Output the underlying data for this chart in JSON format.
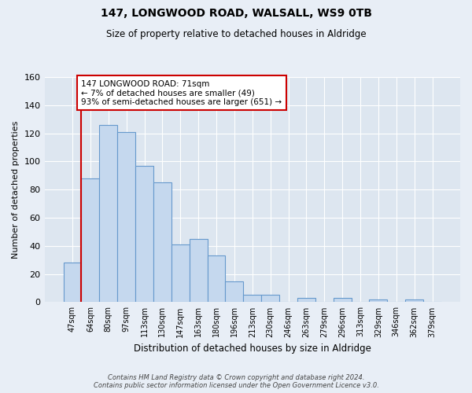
{
  "title": "147, LONGWOOD ROAD, WALSALL, WS9 0TB",
  "subtitle": "Size of property relative to detached houses in Aldridge",
  "xlabel": "Distribution of detached houses by size in Aldridge",
  "ylabel": "Number of detached properties",
  "bar_labels": [
    "47sqm",
    "64sqm",
    "80sqm",
    "97sqm",
    "113sqm",
    "130sqm",
    "147sqm",
    "163sqm",
    "180sqm",
    "196sqm",
    "213sqm",
    "230sqm",
    "246sqm",
    "263sqm",
    "279sqm",
    "296sqm",
    "313sqm",
    "329sqm",
    "346sqm",
    "362sqm",
    "379sqm"
  ],
  "bar_values": [
    28,
    88,
    126,
    121,
    97,
    85,
    41,
    45,
    33,
    15,
    5,
    5,
    0,
    3,
    0,
    3,
    0,
    2,
    0,
    2,
    0
  ],
  "bar_color": "#c5d8ee",
  "bar_edge_color": "#6699cc",
  "highlight_color": "#cc0000",
  "annotation_text": "147 LONGWOOD ROAD: 71sqm\n← 7% of detached houses are smaller (49)\n93% of semi-detached houses are larger (651) →",
  "annotation_box_color": "#ffffff",
  "annotation_box_edge": "#cc0000",
  "ylim": [
    0,
    160
  ],
  "yticks": [
    0,
    20,
    40,
    60,
    80,
    100,
    120,
    140,
    160
  ],
  "footer_line1": "Contains HM Land Registry data © Crown copyright and database right 2024.",
  "footer_line2": "Contains public sector information licensed under the Open Government Licence v3.0.",
  "bg_color": "#e8eef6",
  "plot_bg_color": "#dde6f0",
  "grid_color": "#ffffff",
  "title_fontsize": 10,
  "subtitle_fontsize": 8.5
}
